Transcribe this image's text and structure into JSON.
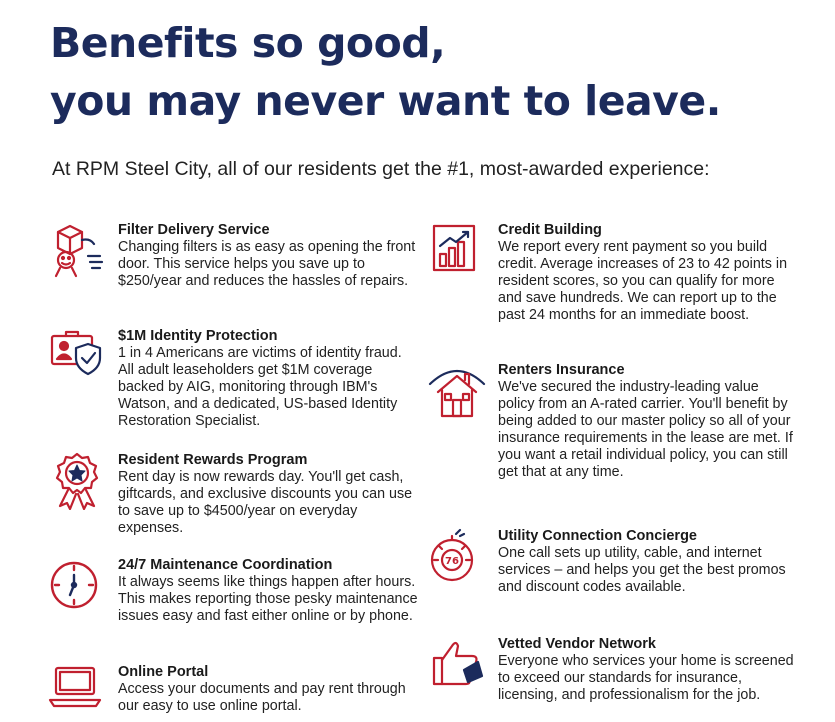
{
  "headline": {
    "line1": "Benefits so good,",
    "line2": "you may never want to leave."
  },
  "intro": "At RPM Steel City, all of our residents get the #1, most-awarded experience:",
  "colors": {
    "headline": "#1c2b5c",
    "icon_red": "#c0202f",
    "icon_navy": "#1c2b5c"
  },
  "benefits_left": [
    {
      "icon": "delivery-box-character-icon",
      "title": "Filter Delivery Service",
      "description": "Changing filters is as easy as opening the front door. This service helps you save up to $250/year and reduces the hassles of repairs."
    },
    {
      "icon": "id-card-shield-icon",
      "title": "$1M Identity Protection",
      "description": "1 in 4 Americans are victims of identity fraud. All adult leaseholders get $1M coverage backed by AIG, monitoring through IBM's Watson, and a dedicated, US-based Identity Restoration Specialist."
    },
    {
      "icon": "award-ribbon-star-icon",
      "title": "Resident Rewards Program",
      "description": "Rent day is now rewards day. You'll get cash, giftcards, and exclusive discounts you can use to save up to $4500/year on everyday expenses."
    },
    {
      "icon": "clock-icon",
      "title": "24/7 Maintenance Coordination",
      "description": "It always seems like things happen after hours. This makes reporting those pesky maintenance issues easy and fast either online or by phone."
    },
    {
      "icon": "laptop-icon",
      "title": "Online Portal",
      "description": "Access your documents and pay rent through our easy to use online portal."
    }
  ],
  "benefits_right": [
    {
      "icon": "bar-chart-growth-icon",
      "title": "Credit Building",
      "description": "We report every rent payment so you build credit. Average increases of 23 to 42 points in resident scores, so you can qualify for more and save hundreds. We can report up to the past 24 months for an immediate boost."
    },
    {
      "icon": "house-umbrella-icon",
      "title": "Renters Insurance",
      "description": "We've secured the industry-leading value policy from an A-rated carrier. You'll benefit by being added to our master policy so all of your insurance requirements in the lease are met. If you want a retail individual policy, you can still get that at any time."
    },
    {
      "icon": "utility-dial-icon",
      "dial_label": "76",
      "title": "Utility Connection Concierge",
      "description": "One call sets up utility, cable, and internet services – and helps you get the best promos and discount codes available."
    },
    {
      "icon": "thumbs-up-icon",
      "title": "Vetted Vendor Network",
      "description": "Everyone who services your home is screened to exceed our standards for insurance, licensing, and professionalism for the job."
    }
  ]
}
